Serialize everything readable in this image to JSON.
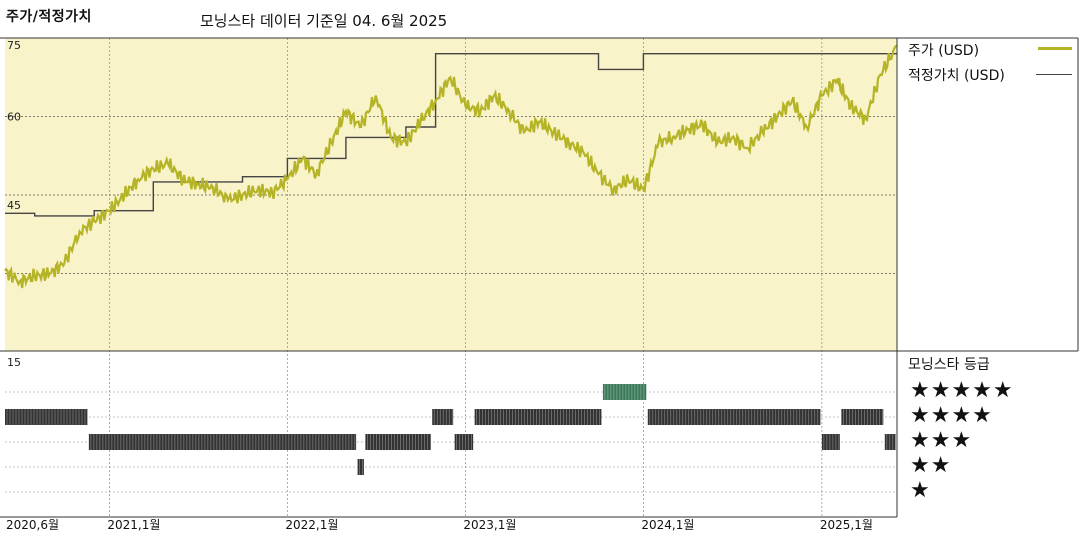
{
  "title": "주가/적정가치",
  "subtitle": "모닝스타 데이터 기준일 04. 6월 2025",
  "legend": {
    "price_label": "주가 (USD)",
    "fair_label": "적정가치 (USD)",
    "price_color": "#b5b326",
    "fair_color": "#444444"
  },
  "rating": {
    "title": "모닝스타 등급",
    "levels": [
      "★★★★★",
      "★★★★",
      "★★★",
      "★★",
      "★"
    ],
    "bar_color": "#333333",
    "five_star_color": "#3a7a5a"
  },
  "chart_data": {
    "type": "line",
    "title": "주가/적정가치",
    "ylim": [
      15,
      75
    ],
    "yticks": [
      75,
      60,
      45,
      15
    ],
    "xticks": [
      "2020,6월",
      "2021,1월",
      "2022,1월",
      "2023,1월",
      "2024,1월",
      "2025,1월"
    ],
    "xtick_dates": [
      "2020-06-01",
      "2021-01-01",
      "2022-01-01",
      "2023-01-01",
      "2024-01-01",
      "2025-01-01"
    ],
    "x_start": "2020-06-01",
    "x_end": "2025-06-04",
    "background_color": "#f8f3c9",
    "series": [
      {
        "name": "주가 (USD)",
        "points": [
          [
            "2020-06-01",
            30.5
          ],
          [
            "2020-07-01",
            28.5
          ],
          [
            "2020-08-01",
            29.5
          ],
          [
            "2020-09-01",
            30.0
          ],
          [
            "2020-10-01",
            32.0
          ],
          [
            "2020-11-01",
            38.0
          ],
          [
            "2020-12-01",
            40.0
          ],
          [
            "2021-01-01",
            42.0
          ],
          [
            "2021-02-01",
            45.0
          ],
          [
            "2021-03-01",
            48.0
          ],
          [
            "2021-04-01",
            50.0
          ],
          [
            "2021-05-01",
            51.0
          ],
          [
            "2021-06-01",
            48.0
          ],
          [
            "2021-07-01",
            47.0
          ],
          [
            "2021-08-01",
            46.5
          ],
          [
            "2021-09-01",
            44.0
          ],
          [
            "2021-10-01",
            45.0
          ],
          [
            "2021-11-01",
            46.0
          ],
          [
            "2021-12-01",
            45.5
          ],
          [
            "2022-01-01",
            48.0
          ],
          [
            "2022-02-01",
            52.0
          ],
          [
            "2022-03-01",
            49.0
          ],
          [
            "2022-04-01",
            55.0
          ],
          [
            "2022-05-01",
            61.0
          ],
          [
            "2022-06-01",
            58.0
          ],
          [
            "2022-07-01",
            64.0
          ],
          [
            "2022-08-01",
            56.0
          ],
          [
            "2022-09-01",
            55.0
          ],
          [
            "2022-10-01",
            59.0
          ],
          [
            "2022-11-01",
            63.0
          ],
          [
            "2022-12-01",
            67.5
          ],
          [
            "2023-01-01",
            62.0
          ],
          [
            "2023-02-01",
            61.0
          ],
          [
            "2023-03-01",
            64.0
          ],
          [
            "2023-04-01",
            61.0
          ],
          [
            "2023-05-01",
            57.0
          ],
          [
            "2023-06-01",
            59.0
          ],
          [
            "2023-07-01",
            57.0
          ],
          [
            "2023-08-01",
            55.0
          ],
          [
            "2023-09-01",
            53.0
          ],
          [
            "2023-10-01",
            49.0
          ],
          [
            "2023-11-01",
            46.0
          ],
          [
            "2023-12-01",
            48.0
          ],
          [
            "2024-01-01",
            46.0
          ],
          [
            "2024-02-01",
            55.0
          ],
          [
            "2024-03-01",
            56.0
          ],
          [
            "2024-04-01",
            57.5
          ],
          [
            "2024-05-01",
            58.5
          ],
          [
            "2024-06-01",
            55.0
          ],
          [
            "2024-07-01",
            56.0
          ],
          [
            "2024-08-01",
            54.0
          ],
          [
            "2024-09-01",
            57.0
          ],
          [
            "2024-10-01",
            60.0
          ],
          [
            "2024-11-01",
            63.0
          ],
          [
            "2024-12-01",
            58.0
          ],
          [
            "2025-01-01",
            64.0
          ],
          [
            "2025-02-01",
            67.0
          ],
          [
            "2025-03-01",
            62.0
          ],
          [
            "2025-04-01",
            59.5
          ],
          [
            "2025-05-01",
            68.0
          ],
          [
            "2025-06-04",
            73.5
          ]
        ]
      },
      {
        "name": "적정가치 (USD)",
        "steps": [
          [
            "2020-06-01",
            41.5
          ],
          [
            "2020-08-01",
            41.0
          ],
          [
            "2020-12-01",
            42.0
          ],
          [
            "2021-04-01",
            47.5
          ],
          [
            "2021-10-01",
            48.5
          ],
          [
            "2022-01-01",
            52.0
          ],
          [
            "2022-05-01",
            56.0
          ],
          [
            "2022-09-01",
            58.0
          ],
          [
            "2022-11-01",
            72.0
          ],
          [
            "2023-10-01",
            69.0
          ],
          [
            "2024-01-01",
            72.0
          ],
          [
            "2025-06-04",
            72.0
          ]
        ]
      }
    ],
    "ratings": [
      {
        "start": "2020-06-01",
        "end": "2020-11-20",
        "stars": 4
      },
      {
        "start": "2020-11-20",
        "end": "2022-05-25",
        "stars": 3
      },
      {
        "start": "2022-05-25",
        "end": "2022-06-10",
        "stars": 2
      },
      {
        "start": "2022-06-10",
        "end": "2022-10-25",
        "stars": 3
      },
      {
        "start": "2022-10-25",
        "end": "2022-12-10",
        "stars": 4
      },
      {
        "start": "2022-12-10",
        "end": "2023-01-20",
        "stars": 3
      },
      {
        "start": "2023-01-20",
        "end": "2023-10-10",
        "stars": 4
      },
      {
        "start": "2023-10-10",
        "end": "2024-01-10",
        "stars": 5
      },
      {
        "start": "2024-01-10",
        "end": "2025-01-01",
        "stars": 4
      },
      {
        "start": "2025-01-01",
        "end": "2025-02-10",
        "stars": 3
      },
      {
        "start": "2025-02-10",
        "end": "2025-05-10",
        "stars": 4
      },
      {
        "start": "2025-05-10",
        "end": "2025-06-04",
        "stars": 3
      }
    ]
  }
}
